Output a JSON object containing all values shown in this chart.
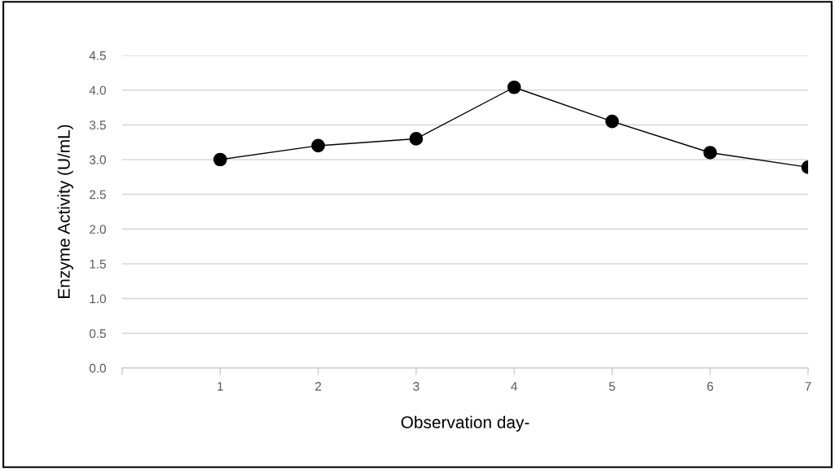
{
  "chart_data": {
    "type": "line",
    "xlabel": "Observation day-",
    "ylabel": "Enzyme Activity (U/mL)",
    "x": [
      1,
      2,
      3,
      4,
      5,
      6,
      7
    ],
    "series": [
      {
        "color": "#000000",
        "values": [
          3.0,
          3.2,
          3.3,
          4.04,
          3.55,
          3.1,
          2.89
        ]
      }
    ],
    "marker": "circle",
    "line_style": "solid",
    "xlim": [
      0,
      7
    ],
    "xticks": [
      {
        "value": 0,
        "label": null
      },
      1,
      2,
      3,
      4,
      5,
      6,
      7
    ],
    "ylim": [
      0,
      4.5
    ],
    "yticks": [
      {
        "value": 0,
        "label": "0.0"
      },
      {
        "value": 0.5,
        "label": "0.5"
      },
      {
        "value": 1,
        "label": "1.0"
      },
      {
        "value": 1.5,
        "label": "1.5"
      },
      {
        "value": 2,
        "label": "2.0"
      },
      {
        "value": 2.5,
        "label": "2.5"
      },
      {
        "value": 3,
        "label": "3.0"
      },
      {
        "value": 3.5,
        "label": "3.5"
      },
      {
        "value": 4,
        "label": "4.0"
      },
      {
        "value": 4.5,
        "label": "4.5"
      }
    ],
    "grid": "y",
    "legend": false
  }
}
